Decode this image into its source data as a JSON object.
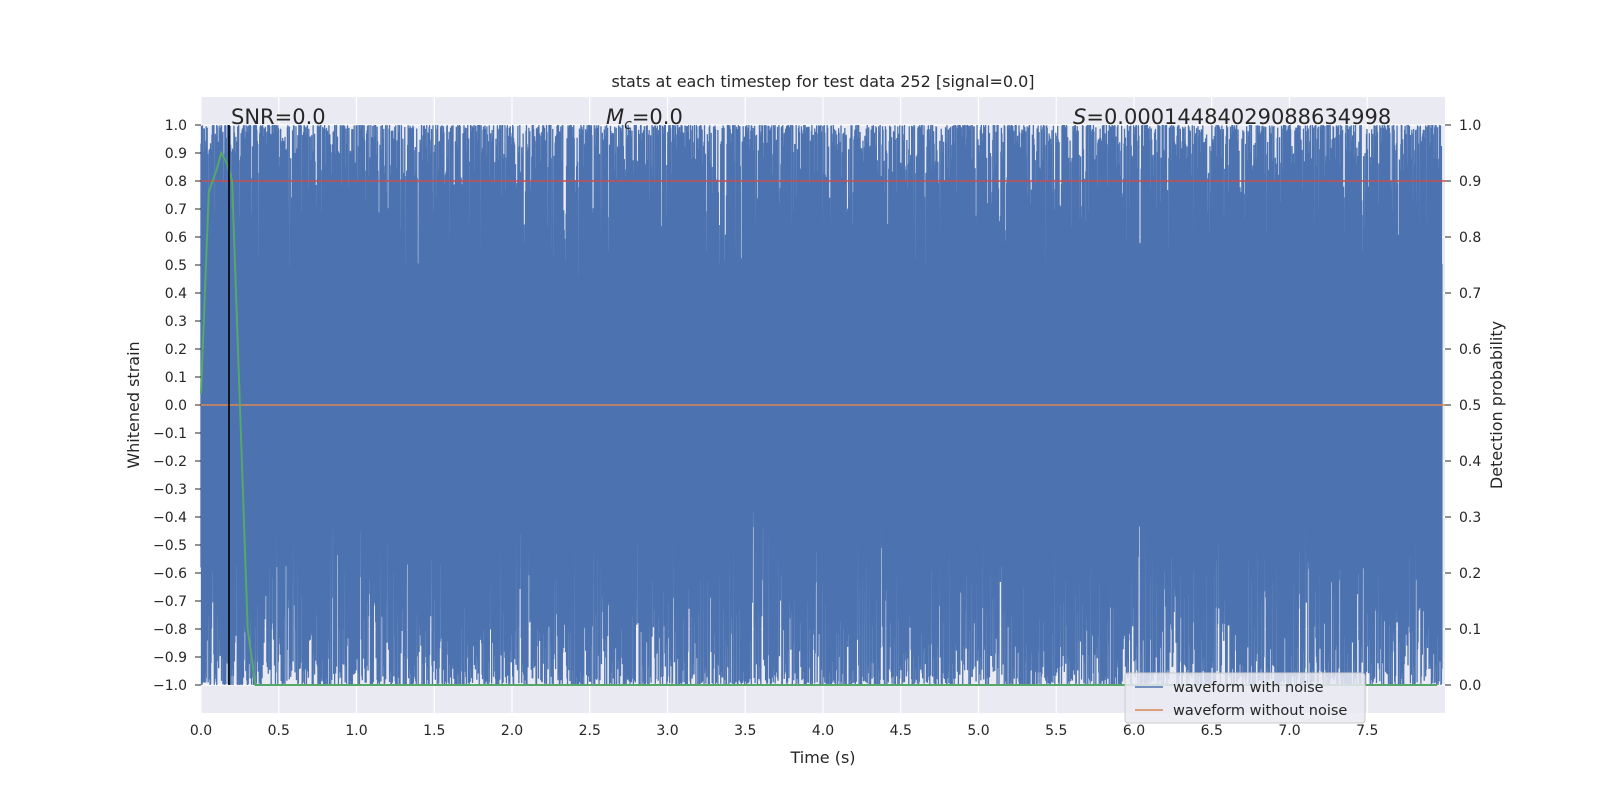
{
  "chart_data": {
    "type": "line",
    "title": "stats at each timestep for test data 252 [signal=0.0]",
    "xlabel": "Time (s)",
    "ylabel_left": "Whitened strain",
    "ylabel_right": "Detection probability",
    "xlim": [
      0.0,
      8.0
    ],
    "ylim_left": [
      -1.1,
      1.1
    ],
    "ylim_right": [
      -0.05,
      1.05
    ],
    "x_ticks": [
      "0.0",
      "0.5",
      "1.0",
      "1.5",
      "2.0",
      "2.5",
      "3.0",
      "3.5",
      "4.0",
      "4.5",
      "5.0",
      "5.5",
      "6.0",
      "6.5",
      "7.0",
      "7.5"
    ],
    "y_ticks_left": [
      "1.0",
      "0.9",
      "0.8",
      "0.7",
      "0.6",
      "0.5",
      "0.4",
      "0.3",
      "0.2",
      "0.1",
      "0.0",
      "−0.1",
      "−0.2",
      "−0.3",
      "−0.4",
      "−0.5",
      "−0.6",
      "−0.7",
      "−0.8",
      "−0.9",
      "−1.0"
    ],
    "y_ticks_right": [
      "1.0",
      "0.9",
      "0.8",
      "0.7",
      "0.6",
      "0.5",
      "0.4",
      "0.3",
      "0.2",
      "0.1",
      "0.0"
    ],
    "grid": true,
    "legend_position": "lower-right",
    "annotations": {
      "snr": "SNR=0.0",
      "mc_symbol": "M",
      "mc_sub": "c",
      "mc_value": "=0.0",
      "s_symbol": "S",
      "s_value": "=0.00014484029088634998"
    },
    "colors": {
      "background": "#eaeaf2",
      "with_noise": "#4c72b0",
      "without_noise": "#dd8452",
      "probability": "#55a868",
      "threshold": "#c44e52",
      "marker": "#000000"
    },
    "series": [
      {
        "name": "waveform with noise",
        "description_range": [
          -1.0,
          1.0
        ],
        "note": "dense noise spanning the full strain range"
      },
      {
        "name": "waveform without noise",
        "value": 0.0
      },
      {
        "x": [
          0.0,
          0.05,
          0.1,
          0.13,
          0.17,
          0.2,
          0.25,
          0.3,
          0.35,
          0.4,
          7.95
        ],
        "y": [
          0.52,
          0.88,
          0.92,
          0.95,
          0.93,
          0.9,
          0.5,
          0.1,
          0.0,
          0.0,
          0.0
        ]
      },
      {
        "threshold_y": 0.9
      }
    ],
    "marker_x": 0.18
  }
}
